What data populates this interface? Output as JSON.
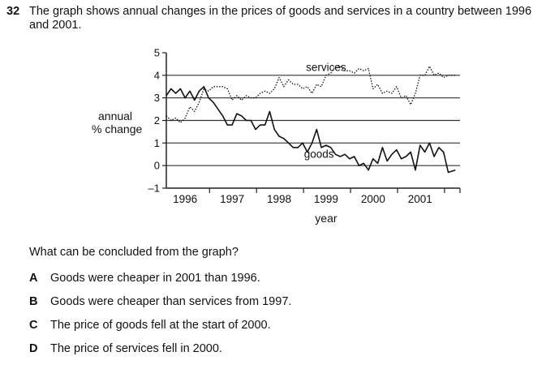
{
  "question": {
    "number": "32",
    "text": "The graph shows annual changes in the prices of goods and services in a country between 1996 and 2001."
  },
  "prompt": "What can be concluded from the graph?",
  "options": [
    {
      "letter": "A",
      "text": "Goods were cheaper in 2001 than 1996."
    },
    {
      "letter": "B",
      "text": "Goods were cheaper than services from 1997."
    },
    {
      "letter": "C",
      "text": "The price of goods fell at the start of 2000."
    },
    {
      "letter": "D",
      "text": "The price of services fell in 2000."
    }
  ],
  "chart_data": {
    "type": "line",
    "ylabel_line1": "annual",
    "ylabel_line2": "% change",
    "xlabel": "year",
    "ylim": [
      -1,
      5
    ],
    "yticks": [
      "5",
      "4",
      "3",
      "2",
      "1",
      "0",
      "–1"
    ],
    "ytick_values": [
      5,
      4,
      3,
      2,
      1,
      0,
      -1
    ],
    "gridlines": [
      4,
      3,
      2,
      1,
      0
    ],
    "xlim": [
      1995.6,
      2001.85
    ],
    "xticks": [
      "1996",
      "1997",
      "1998",
      "1999",
      "2000",
      "2001"
    ],
    "series": [
      {
        "name": "services",
        "style": "dotted",
        "points": [
          [
            1995.6,
            2.2
          ],
          [
            1995.7,
            2.0
          ],
          [
            1995.8,
            2.1
          ],
          [
            1995.9,
            1.9
          ],
          [
            1996.0,
            2.1
          ],
          [
            1996.1,
            2.6
          ],
          [
            1996.2,
            2.4
          ],
          [
            1996.3,
            2.8
          ],
          [
            1996.4,
            3.4
          ],
          [
            1996.5,
            3.3
          ],
          [
            1996.6,
            3.5
          ],
          [
            1996.7,
            3.5
          ],
          [
            1996.8,
            3.5
          ],
          [
            1996.9,
            3.4
          ],
          [
            1997.0,
            2.9
          ],
          [
            1997.1,
            3.1
          ],
          [
            1997.2,
            2.9
          ],
          [
            1997.3,
            3.1
          ],
          [
            1997.4,
            3.0
          ],
          [
            1997.5,
            3.0
          ],
          [
            1997.6,
            3.2
          ],
          [
            1997.7,
            3.3
          ],
          [
            1997.8,
            3.2
          ],
          [
            1997.9,
            3.4
          ],
          [
            1998.0,
            3.9
          ],
          [
            1998.1,
            3.5
          ],
          [
            1998.2,
            3.8
          ],
          [
            1998.3,
            3.6
          ],
          [
            1998.4,
            3.6
          ],
          [
            1998.5,
            3.4
          ],
          [
            1998.6,
            3.5
          ],
          [
            1998.7,
            3.2
          ],
          [
            1998.8,
            3.6
          ],
          [
            1998.9,
            3.5
          ],
          [
            1999.0,
            4.0
          ],
          [
            1999.1,
            4.1
          ],
          [
            1999.2,
            4.4
          ],
          [
            1999.3,
            4.4
          ],
          [
            1999.4,
            4.2
          ],
          [
            1999.5,
            4.2
          ],
          [
            1999.6,
            4.1
          ],
          [
            1999.7,
            4.3
          ],
          [
            1999.8,
            4.2
          ],
          [
            1999.9,
            4.3
          ],
          [
            2000.0,
            3.4
          ],
          [
            2000.1,
            3.6
          ],
          [
            2000.2,
            3.2
          ],
          [
            2000.3,
            3.3
          ],
          [
            2000.4,
            3.2
          ],
          [
            2000.5,
            3.5
          ],
          [
            2000.6,
            3.0
          ],
          [
            2000.7,
            3.1
          ],
          [
            2000.8,
            2.7
          ],
          [
            2000.9,
            3.2
          ],
          [
            2001.0,
            4.0
          ],
          [
            2001.1,
            4.0
          ],
          [
            2001.2,
            4.4
          ],
          [
            2001.3,
            4.0
          ],
          [
            2001.4,
            4.1
          ],
          [
            2001.5,
            3.9
          ],
          [
            2001.6,
            4.0
          ],
          [
            2001.75,
            4.0
          ]
        ]
      },
      {
        "name": "goods",
        "style": "solid",
        "points": [
          [
            1995.6,
            3.1
          ],
          [
            1995.7,
            3.4
          ],
          [
            1995.8,
            3.2
          ],
          [
            1995.9,
            3.4
          ],
          [
            1996.0,
            3.0
          ],
          [
            1996.1,
            3.3
          ],
          [
            1996.2,
            2.9
          ],
          [
            1996.3,
            3.3
          ],
          [
            1996.4,
            3.5
          ],
          [
            1996.5,
            3.0
          ],
          [
            1996.6,
            2.8
          ],
          [
            1996.7,
            2.5
          ],
          [
            1996.8,
            2.2
          ],
          [
            1996.9,
            1.8
          ],
          [
            1997.0,
            1.8
          ],
          [
            1997.1,
            2.3
          ],
          [
            1997.2,
            2.2
          ],
          [
            1997.3,
            2.0
          ],
          [
            1997.4,
            2.0
          ],
          [
            1997.5,
            1.6
          ],
          [
            1997.6,
            1.8
          ],
          [
            1997.7,
            1.8
          ],
          [
            1997.8,
            2.4
          ],
          [
            1997.9,
            1.6
          ],
          [
            1998.0,
            1.3
          ],
          [
            1998.1,
            1.2
          ],
          [
            1998.2,
            1.0
          ],
          [
            1998.3,
            0.8
          ],
          [
            1998.4,
            0.8
          ],
          [
            1998.5,
            1.0
          ],
          [
            1998.6,
            0.6
          ],
          [
            1998.7,
            1.0
          ],
          [
            1998.8,
            1.6
          ],
          [
            1998.9,
            0.8
          ],
          [
            1999.0,
            0.9
          ],
          [
            1999.1,
            0.8
          ],
          [
            1999.2,
            0.5
          ],
          [
            1999.3,
            0.4
          ],
          [
            1999.4,
            0.5
          ],
          [
            1999.5,
            0.3
          ],
          [
            1999.6,
            0.4
          ],
          [
            1999.7,
            0.0
          ],
          [
            1999.8,
            0.1
          ],
          [
            1999.9,
            -0.2
          ],
          [
            2000.0,
            0.3
          ],
          [
            2000.1,
            0.1
          ],
          [
            2000.2,
            0.8
          ],
          [
            2000.3,
            0.2
          ],
          [
            2000.4,
            0.5
          ],
          [
            2000.5,
            0.7
          ],
          [
            2000.6,
            0.3
          ],
          [
            2000.7,
            0.4
          ],
          [
            2000.8,
            0.6
          ],
          [
            2000.9,
            -0.2
          ],
          [
            2001.0,
            0.9
          ],
          [
            2001.1,
            0.6
          ],
          [
            2001.2,
            1.0
          ],
          [
            2001.3,
            0.4
          ],
          [
            2001.4,
            0.8
          ],
          [
            2001.5,
            0.6
          ],
          [
            2001.6,
            -0.3
          ],
          [
            2001.75,
            -0.2
          ]
        ]
      }
    ]
  }
}
